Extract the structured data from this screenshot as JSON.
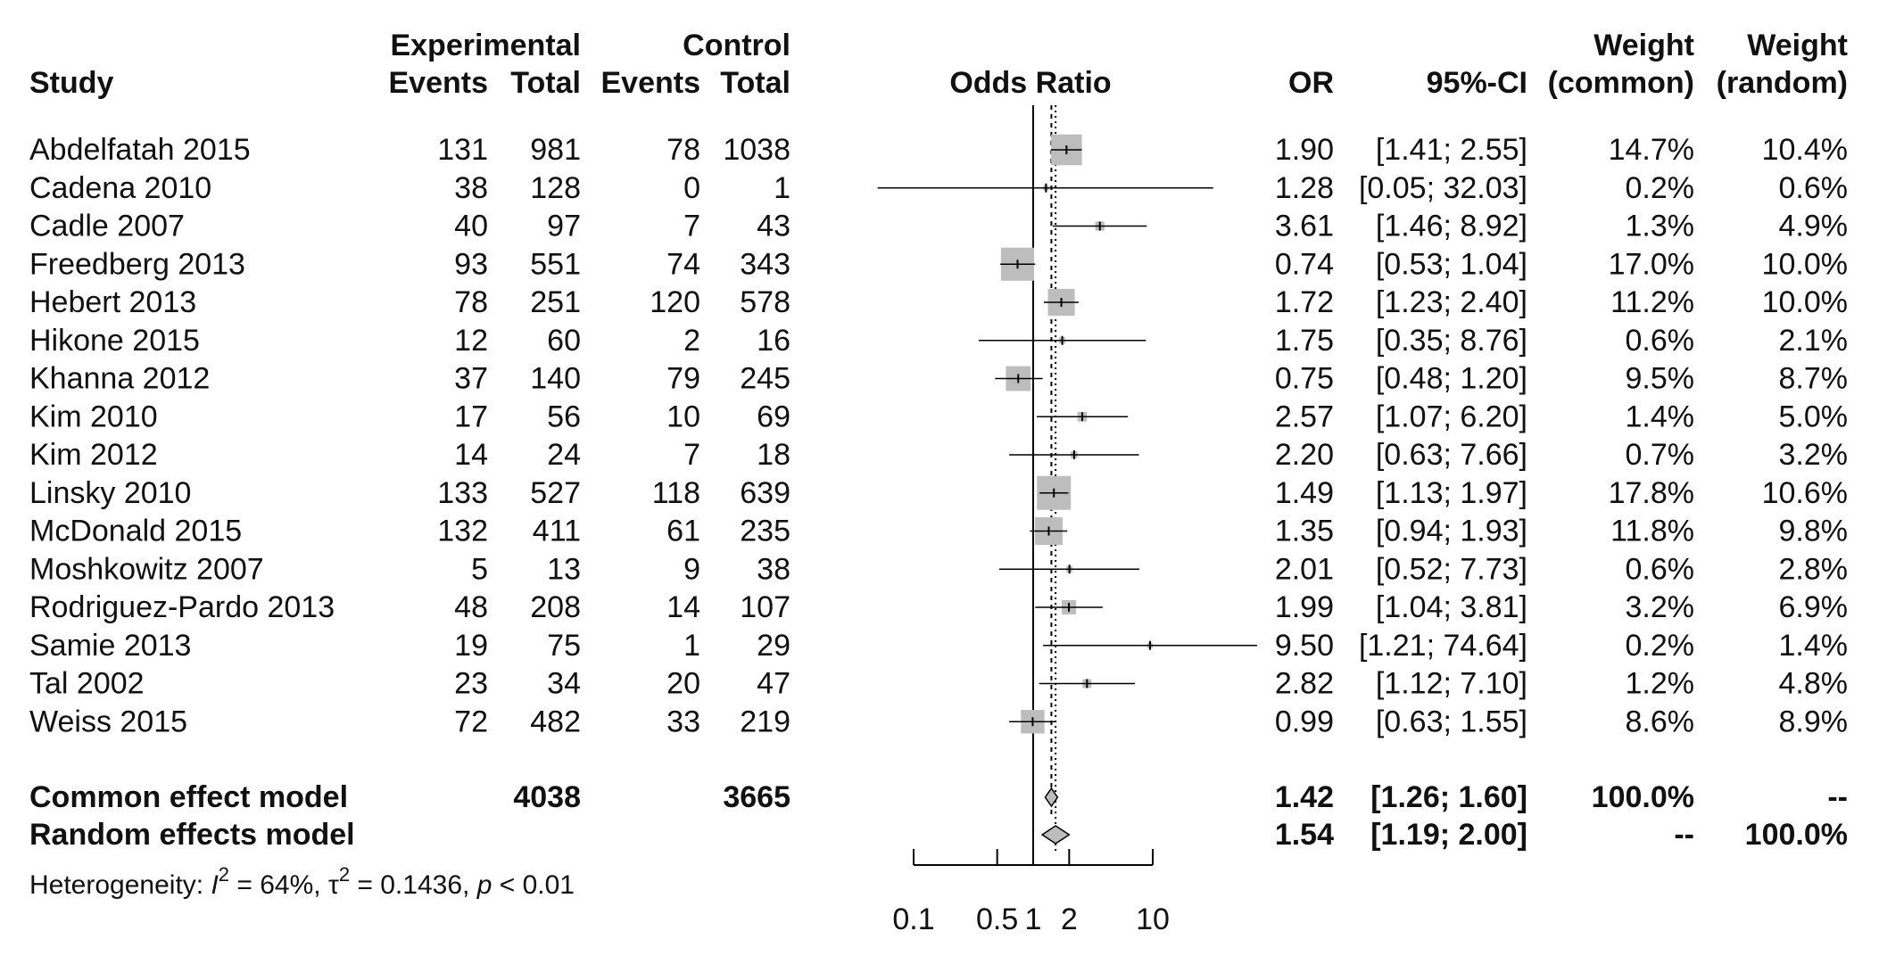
{
  "headers": {
    "study": "Study",
    "experimental": "Experimental",
    "control": "Control",
    "events": "Events",
    "total": "Total",
    "odds_ratio": "Odds Ratio",
    "or": "OR",
    "ci": "95%-CI",
    "weight": "Weight",
    "common": "(common)",
    "random": "(random)"
  },
  "studies": [
    {
      "study": "Abdelfatah 2015",
      "e_events": "131",
      "e_total": "981",
      "c_events": "78",
      "c_total": "1038",
      "or": "1.90",
      "ci": "[1.41; 2.55]",
      "w_common": "14.7%",
      "w_random": "10.4%"
    },
    {
      "study": "Cadena 2010",
      "e_events": "38",
      "e_total": "128",
      "c_events": "0",
      "c_total": "1",
      "or": "1.28",
      "ci": "[0.05; 32.03]",
      "w_common": "0.2%",
      "w_random": "0.6%"
    },
    {
      "study": "Cadle 2007",
      "e_events": "40",
      "e_total": "97",
      "c_events": "7",
      "c_total": "43",
      "or": "3.61",
      "ci": "[1.46; 8.92]",
      "w_common": "1.3%",
      "w_random": "4.9%"
    },
    {
      "study": "Freedberg 2013",
      "e_events": "93",
      "e_total": "551",
      "c_events": "74",
      "c_total": "343",
      "or": "0.74",
      "ci": "[0.53; 1.04]",
      "w_common": "17.0%",
      "w_random": "10.0%"
    },
    {
      "study": "Hebert 2013",
      "e_events": "78",
      "e_total": "251",
      "c_events": "120",
      "c_total": "578",
      "or": "1.72",
      "ci": "[1.23; 2.40]",
      "w_common": "11.2%",
      "w_random": "10.0%"
    },
    {
      "study": "Hikone 2015",
      "e_events": "12",
      "e_total": "60",
      "c_events": "2",
      "c_total": "16",
      "or": "1.75",
      "ci": "[0.35; 8.76]",
      "w_common": "0.6%",
      "w_random": "2.1%"
    },
    {
      "study": "Khanna 2012",
      "e_events": "37",
      "e_total": "140",
      "c_events": "79",
      "c_total": "245",
      "or": "0.75",
      "ci": "[0.48; 1.20]",
      "w_common": "9.5%",
      "w_random": "8.7%"
    },
    {
      "study": "Kim 2010",
      "e_events": "17",
      "e_total": "56",
      "c_events": "10",
      "c_total": "69",
      "or": "2.57",
      "ci": "[1.07; 6.20]",
      "w_common": "1.4%",
      "w_random": "5.0%"
    },
    {
      "study": "Kim 2012",
      "e_events": "14",
      "e_total": "24",
      "c_events": "7",
      "c_total": "18",
      "or": "2.20",
      "ci": "[0.63; 7.66]",
      "w_common": "0.7%",
      "w_random": "3.2%"
    },
    {
      "study": "Linsky 2010",
      "e_events": "133",
      "e_total": "527",
      "c_events": "118",
      "c_total": "639",
      "or": "1.49",
      "ci": "[1.13; 1.97]",
      "w_common": "17.8%",
      "w_random": "10.6%"
    },
    {
      "study": "McDonald 2015",
      "e_events": "132",
      "e_total": "411",
      "c_events": "61",
      "c_total": "235",
      "or": "1.35",
      "ci": "[0.94; 1.93]",
      "w_common": "11.8%",
      "w_random": "9.8%"
    },
    {
      "study": "Moshkowitz 2007",
      "e_events": "5",
      "e_total": "13",
      "c_events": "9",
      "c_total": "38",
      "or": "2.01",
      "ci": "[0.52; 7.73]",
      "w_common": "0.6%",
      "w_random": "2.8%"
    },
    {
      "study": "Rodriguez-Pardo 2013",
      "e_events": "48",
      "e_total": "208",
      "c_events": "14",
      "c_total": "107",
      "or": "1.99",
      "ci": "[1.04; 3.81]",
      "w_common": "3.2%",
      "w_random": "6.9%"
    },
    {
      "study": "Samie 2013",
      "e_events": "19",
      "e_total": "75",
      "c_events": "1",
      "c_total": "29",
      "or": "9.50",
      "ci": "[1.21; 74.64]",
      "w_common": "0.2%",
      "w_random": "1.4%"
    },
    {
      "study": "Tal  2002",
      "e_events": "23",
      "e_total": "34",
      "c_events": "20",
      "c_total": "47",
      "or": "2.82",
      "ci": "[1.12; 7.10]",
      "w_common": "1.2%",
      "w_random": "4.8%"
    },
    {
      "study": "Weiss 2015",
      "e_events": "72",
      "e_total": "482",
      "c_events": "33",
      "c_total": "219",
      "or": "0.99",
      "ci": "[0.63; 1.55]",
      "w_common": "8.6%",
      "w_random": "8.9%"
    }
  ],
  "summary": [
    {
      "label": "Common effect model",
      "e_total": "4038",
      "c_total": "3665",
      "or": "1.42",
      "ci": "[1.26; 1.60]",
      "w_common": "100.0%",
      "w_random": "--"
    },
    {
      "label": "Random effects model",
      "e_total": "",
      "c_total": "",
      "or": "1.54",
      "ci": "[1.19; 2.00]",
      "w_common": "--",
      "w_random": "100.0%"
    }
  ],
  "heterogeneity": {
    "prefix": "Heterogeneity: ",
    "i_symbol": "I",
    "sup": "2",
    "i_value": " = 64%, ",
    "tau_symbol": "τ",
    "tau_value": " = 0.1436, ",
    "p_symbol": "p",
    "p_value": " < 0.01"
  },
  "colors": {
    "box": "#bdbdbd",
    "diamond": "#bdbdbd",
    "line": "#000000"
  },
  "chart_data": {
    "type": "forest",
    "scale": "log",
    "xlim": [
      0.1,
      10
    ],
    "ticks": [
      0.1,
      0.5,
      1,
      2,
      10
    ],
    "tick_labels": [
      "0.1",
      "0.5",
      "1",
      "2",
      "10"
    ],
    "reference_line": 1,
    "points": [
      {
        "or": 1.9,
        "lo": 1.41,
        "hi": 2.55,
        "w": 14.7
      },
      {
        "or": 1.28,
        "lo": 0.05,
        "hi": 32.03,
        "w": 0.2
      },
      {
        "or": 3.61,
        "lo": 1.46,
        "hi": 8.92,
        "w": 1.3
      },
      {
        "or": 0.74,
        "lo": 0.53,
        "hi": 1.04,
        "w": 17.0
      },
      {
        "or": 1.72,
        "lo": 1.23,
        "hi": 2.4,
        "w": 11.2
      },
      {
        "or": 1.75,
        "lo": 0.35,
        "hi": 8.76,
        "w": 0.6
      },
      {
        "or": 0.75,
        "lo": 0.48,
        "hi": 1.2,
        "w": 9.5
      },
      {
        "or": 2.57,
        "lo": 1.07,
        "hi": 6.2,
        "w": 1.4
      },
      {
        "or": 2.2,
        "lo": 0.63,
        "hi": 7.66,
        "w": 0.7
      },
      {
        "or": 1.49,
        "lo": 1.13,
        "hi": 1.97,
        "w": 17.8
      },
      {
        "or": 1.35,
        "lo": 0.94,
        "hi": 1.93,
        "w": 11.8
      },
      {
        "or": 2.01,
        "lo": 0.52,
        "hi": 7.73,
        "w": 0.6
      },
      {
        "or": 1.99,
        "lo": 1.04,
        "hi": 3.81,
        "w": 3.2
      },
      {
        "or": 9.5,
        "lo": 1.21,
        "hi": 74.64,
        "w": 0.2
      },
      {
        "or": 2.82,
        "lo": 1.12,
        "hi": 7.1,
        "w": 1.2
      },
      {
        "or": 0.99,
        "lo": 0.63,
        "hi": 1.55,
        "w": 8.6
      }
    ],
    "common": {
      "or": 1.42,
      "lo": 1.26,
      "hi": 1.6
    },
    "random": {
      "or": 1.54,
      "lo": 1.19,
      "hi": 2.0
    }
  }
}
